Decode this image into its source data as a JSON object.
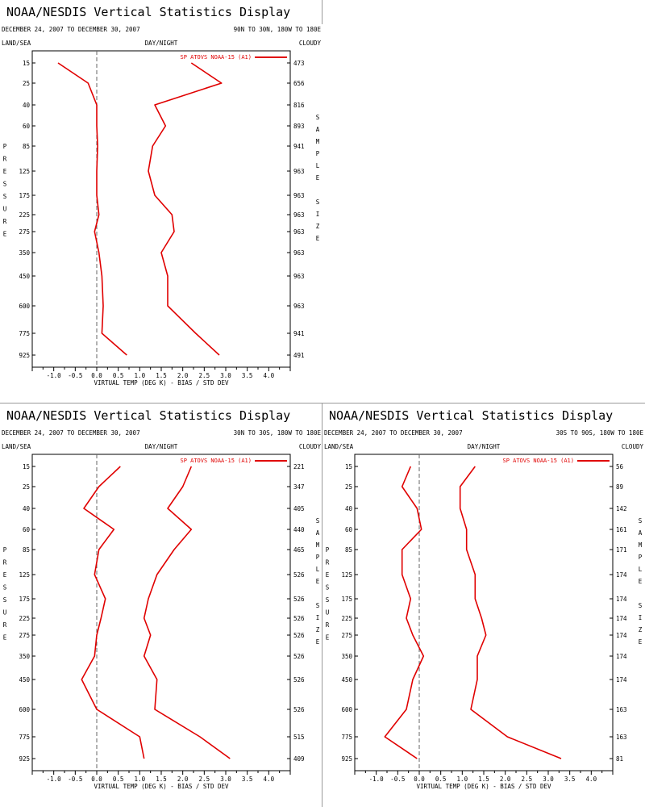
{
  "colors": {
    "series": "#e00000",
    "axis": "#000000",
    "zero_line": "#666666",
    "divider": "#9a9a9a"
  },
  "chart_data": [
    {
      "type": "line",
      "title": "NOAA/NESDIS Vertical Statistics Display",
      "date_range": "DECEMBER 24, 2007 TO DECEMBER 30, 2007",
      "region": "90N TO 30N, 180W TO 180E",
      "top_left_label": "LAND/SEA",
      "top_center_label": "DAY/NIGHT",
      "top_right_label": "CLOUDY",
      "ylabel": "PRESSURE",
      "right_axis_label": "SAMPLE SIZE",
      "xlabel": "VIRTUAL TEMP (DEG K) - BIAS / STD DEV",
      "legend": "SP ATOVS NOAA-15 (A1)",
      "xlim": [
        -1.5,
        4.5
      ],
      "x_ticks": [
        "-1.0",
        "-0.5",
        "0.0",
        "0.5",
        "1.0",
        "1.5",
        "2.0",
        "2.5",
        "3.0",
        "3.5",
        "4.0"
      ],
      "pressure_levels": [
        "15",
        "25",
        "40",
        "60",
        "85",
        "125",
        "175",
        "225",
        "275",
        "350",
        "450",
        "600",
        "775",
        "925"
      ],
      "sample_size": [
        "473",
        "656",
        "816",
        "893",
        "941",
        "963",
        "963",
        "963",
        "963",
        "963",
        "963",
        "963",
        "941",
        "491"
      ],
      "series": [
        {
          "name": "bias",
          "values": [
            -0.9,
            -0.2,
            0.0,
            0.0,
            0.02,
            0.0,
            0.0,
            0.05,
            -0.05,
            0.05,
            0.12,
            0.15,
            0.12,
            0.7
          ]
        },
        {
          "name": "std dev",
          "values": [
            2.2,
            2.9,
            1.35,
            1.6,
            1.3,
            1.2,
            1.35,
            1.75,
            1.8,
            1.5,
            1.65,
            1.65,
            2.3,
            2.85
          ]
        }
      ]
    },
    {
      "type": "line",
      "title": "NOAA/NESDIS Vertical Statistics Display",
      "date_range": "DECEMBER 24, 2007 TO DECEMBER 30, 2007",
      "region": "30N TO 30S, 180W TO 180E",
      "top_left_label": "LAND/SEA",
      "top_center_label": "DAY/NIGHT",
      "top_right_label": "CLOUDY",
      "ylabel": "PRESSURE",
      "right_axis_label": "SAMPLE SIZE",
      "xlabel": "VIRTUAL TEMP (DEG K) - BIAS / STD DEV",
      "legend": "SP ATOVS NOAA-15 (A1)",
      "xlim": [
        -1.5,
        4.5
      ],
      "x_ticks": [
        "-1.0",
        "-0.5",
        "0.0",
        "0.5",
        "1.0",
        "1.5",
        "2.0",
        "2.5",
        "3.0",
        "3.5",
        "4.0"
      ],
      "pressure_levels": [
        "15",
        "25",
        "40",
        "60",
        "85",
        "125",
        "175",
        "225",
        "275",
        "350",
        "450",
        "600",
        "775",
        "925"
      ],
      "sample_size": [
        "221",
        "347",
        "405",
        "440",
        "465",
        "526",
        "526",
        "526",
        "526",
        "526",
        "526",
        "526",
        "515",
        "409"
      ],
      "series": [
        {
          "name": "bias",
          "values": [
            0.55,
            0.05,
            -0.3,
            0.4,
            0.05,
            -0.05,
            0.2,
            0.1,
            0.0,
            -0.05,
            -0.35,
            0.0,
            1.0,
            1.1
          ]
        },
        {
          "name": "std dev",
          "values": [
            2.2,
            2.0,
            1.65,
            2.2,
            1.8,
            1.4,
            1.2,
            1.1,
            1.25,
            1.1,
            1.4,
            1.35,
            2.4,
            3.1
          ]
        }
      ]
    },
    {
      "type": "line",
      "title": "NOAA/NESDIS Vertical Statistics Display",
      "date_range": "DECEMBER 24, 2007 TO DECEMBER 30, 2007",
      "region": "30S TO 90S, 180W TO 180E",
      "top_left_label": "LAND/SEA",
      "top_center_label": "DAY/NIGHT",
      "top_right_label": "CLOUDY",
      "ylabel": "PRESSURE",
      "right_axis_label": "SAMPLE SIZE",
      "xlabel": "VIRTUAL TEMP (DEG K) - BIAS / STD DEV",
      "legend": "SP ATOVS NOAA-15 (A1)",
      "xlim": [
        -1.5,
        4.5
      ],
      "x_ticks": [
        "-1.0",
        "-0.5",
        "0.0",
        "0.5",
        "1.0",
        "1.5",
        "2.0",
        "2.5",
        "3.0",
        "3.5",
        "4.0"
      ],
      "pressure_levels": [
        "15",
        "25",
        "40",
        "60",
        "85",
        "125",
        "175",
        "225",
        "275",
        "350",
        "450",
        "600",
        "775",
        "925"
      ],
      "sample_size": [
        "56",
        "89",
        "142",
        "161",
        "171",
        "174",
        "174",
        "174",
        "174",
        "174",
        "174",
        "163",
        "163",
        "81"
      ],
      "series": [
        {
          "name": "bias",
          "values": [
            -0.2,
            -0.4,
            -0.05,
            0.05,
            -0.4,
            -0.4,
            -0.2,
            -0.3,
            -0.15,
            0.1,
            -0.15,
            -0.3,
            -0.8,
            -0.05
          ]
        },
        {
          "name": "std dev",
          "values": [
            1.3,
            0.95,
            0.95,
            1.1,
            1.1,
            1.3,
            1.3,
            1.45,
            1.55,
            1.35,
            1.35,
            1.2,
            2.05,
            3.3
          ]
        }
      ]
    }
  ]
}
